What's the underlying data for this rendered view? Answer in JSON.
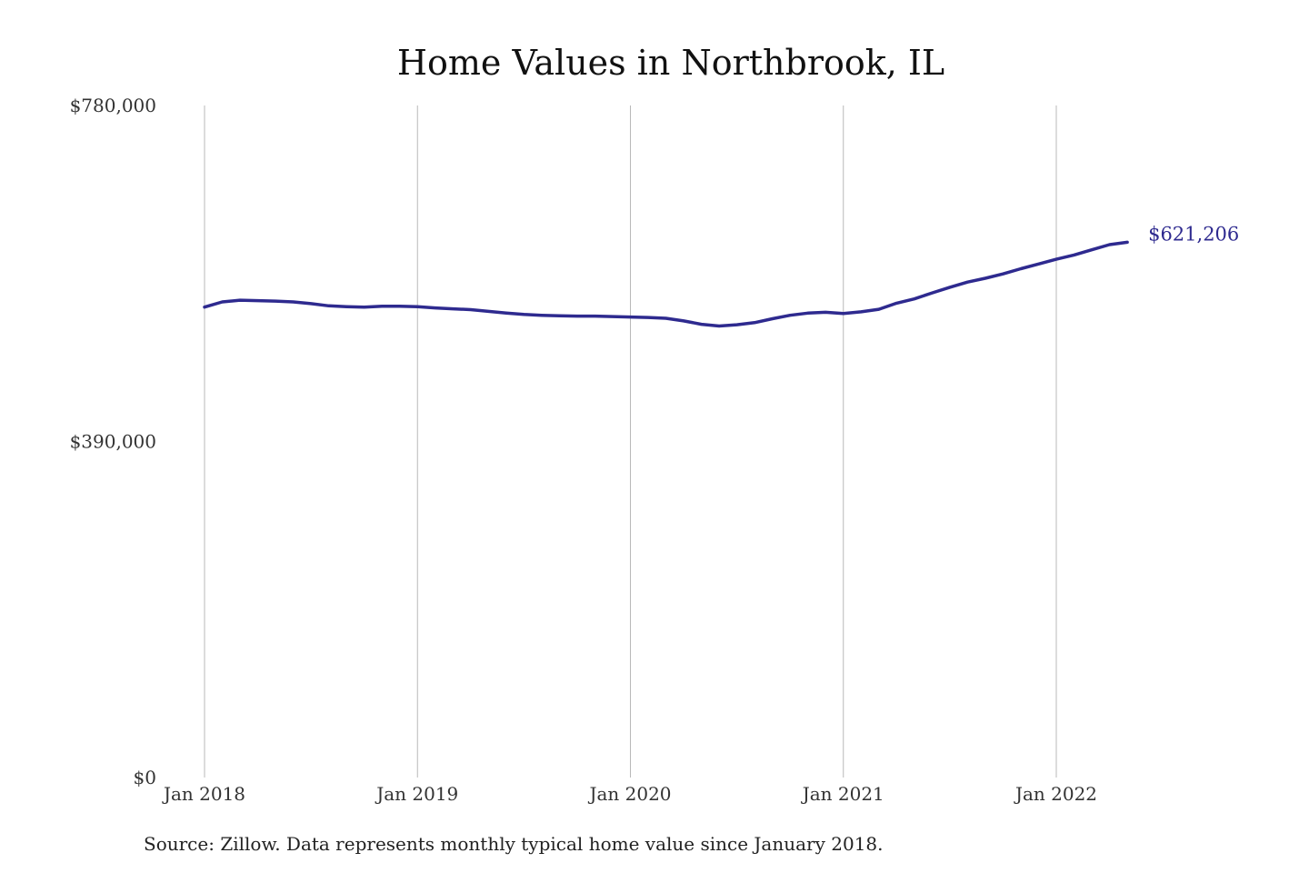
{
  "chart_data": {
    "type": "line",
    "title": "Home Values in Northbrook, IL",
    "xlabel": "",
    "ylabel": "",
    "ylim": [
      0,
      780000
    ],
    "y_ticks": [
      {
        "value": 0,
        "label": "$0"
      },
      {
        "value": 390000,
        "label": "$390,000"
      },
      {
        "value": 780000,
        "label": "$780,000"
      }
    ],
    "x_ticks": [
      {
        "date": "2018-01",
        "label": "Jan 2018"
      },
      {
        "date": "2019-01",
        "label": "Jan 2019"
      },
      {
        "date": "2020-01",
        "label": "Jan 2020"
      },
      {
        "date": "2021-01",
        "label": "Jan 2021"
      },
      {
        "date": "2022-01",
        "label": "Jan 2022"
      }
    ],
    "x_gridlines": true,
    "y_gridlines": false,
    "legend": "none",
    "series": [
      {
        "color": "#2e2a8f",
        "x": [
          "2018-01",
          "2018-02",
          "2018-03",
          "2018-04",
          "2018-05",
          "2018-06",
          "2018-07",
          "2018-08",
          "2018-09",
          "2018-10",
          "2018-11",
          "2018-12",
          "2019-01",
          "2019-02",
          "2019-03",
          "2019-04",
          "2019-05",
          "2019-06",
          "2019-07",
          "2019-08",
          "2019-09",
          "2019-10",
          "2019-11",
          "2019-12",
          "2020-01",
          "2020-02",
          "2020-03",
          "2020-04",
          "2020-05",
          "2020-06",
          "2020-07",
          "2020-08",
          "2020-09",
          "2020-10",
          "2020-11",
          "2020-12",
          "2021-01",
          "2021-02",
          "2021-03",
          "2021-04",
          "2021-05",
          "2021-06",
          "2021-07",
          "2021-08",
          "2021-09",
          "2021-10",
          "2021-11",
          "2021-12",
          "2022-01",
          "2022-02",
          "2022-03",
          "2022-04",
          "2022-05"
        ],
        "values": [
          546000,
          552000,
          554000,
          553500,
          553000,
          552000,
          550000,
          547500,
          546500,
          546000,
          547000,
          547000,
          546500,
          545000,
          544000,
          543000,
          541000,
          539000,
          537500,
          536500,
          536000,
          535500,
          535500,
          535000,
          534500,
          534000,
          533000,
          530000,
          526000,
          524000,
          525500,
          528000,
          532500,
          536500,
          539000,
          540000,
          538500,
          540500,
          543500,
          550500,
          555500,
          562500,
          569000,
          575000,
          579500,
          584500,
          590500,
          596000,
          601500,
          606500,
          612500,
          618500,
          621206
        ]
      }
    ],
    "annotations": [
      {
        "x": "2022-05",
        "value": 621206,
        "label": "$621,206"
      }
    ]
  },
  "source_note": "Source: Zillow. Data represents monthly typical home value since January 2018."
}
